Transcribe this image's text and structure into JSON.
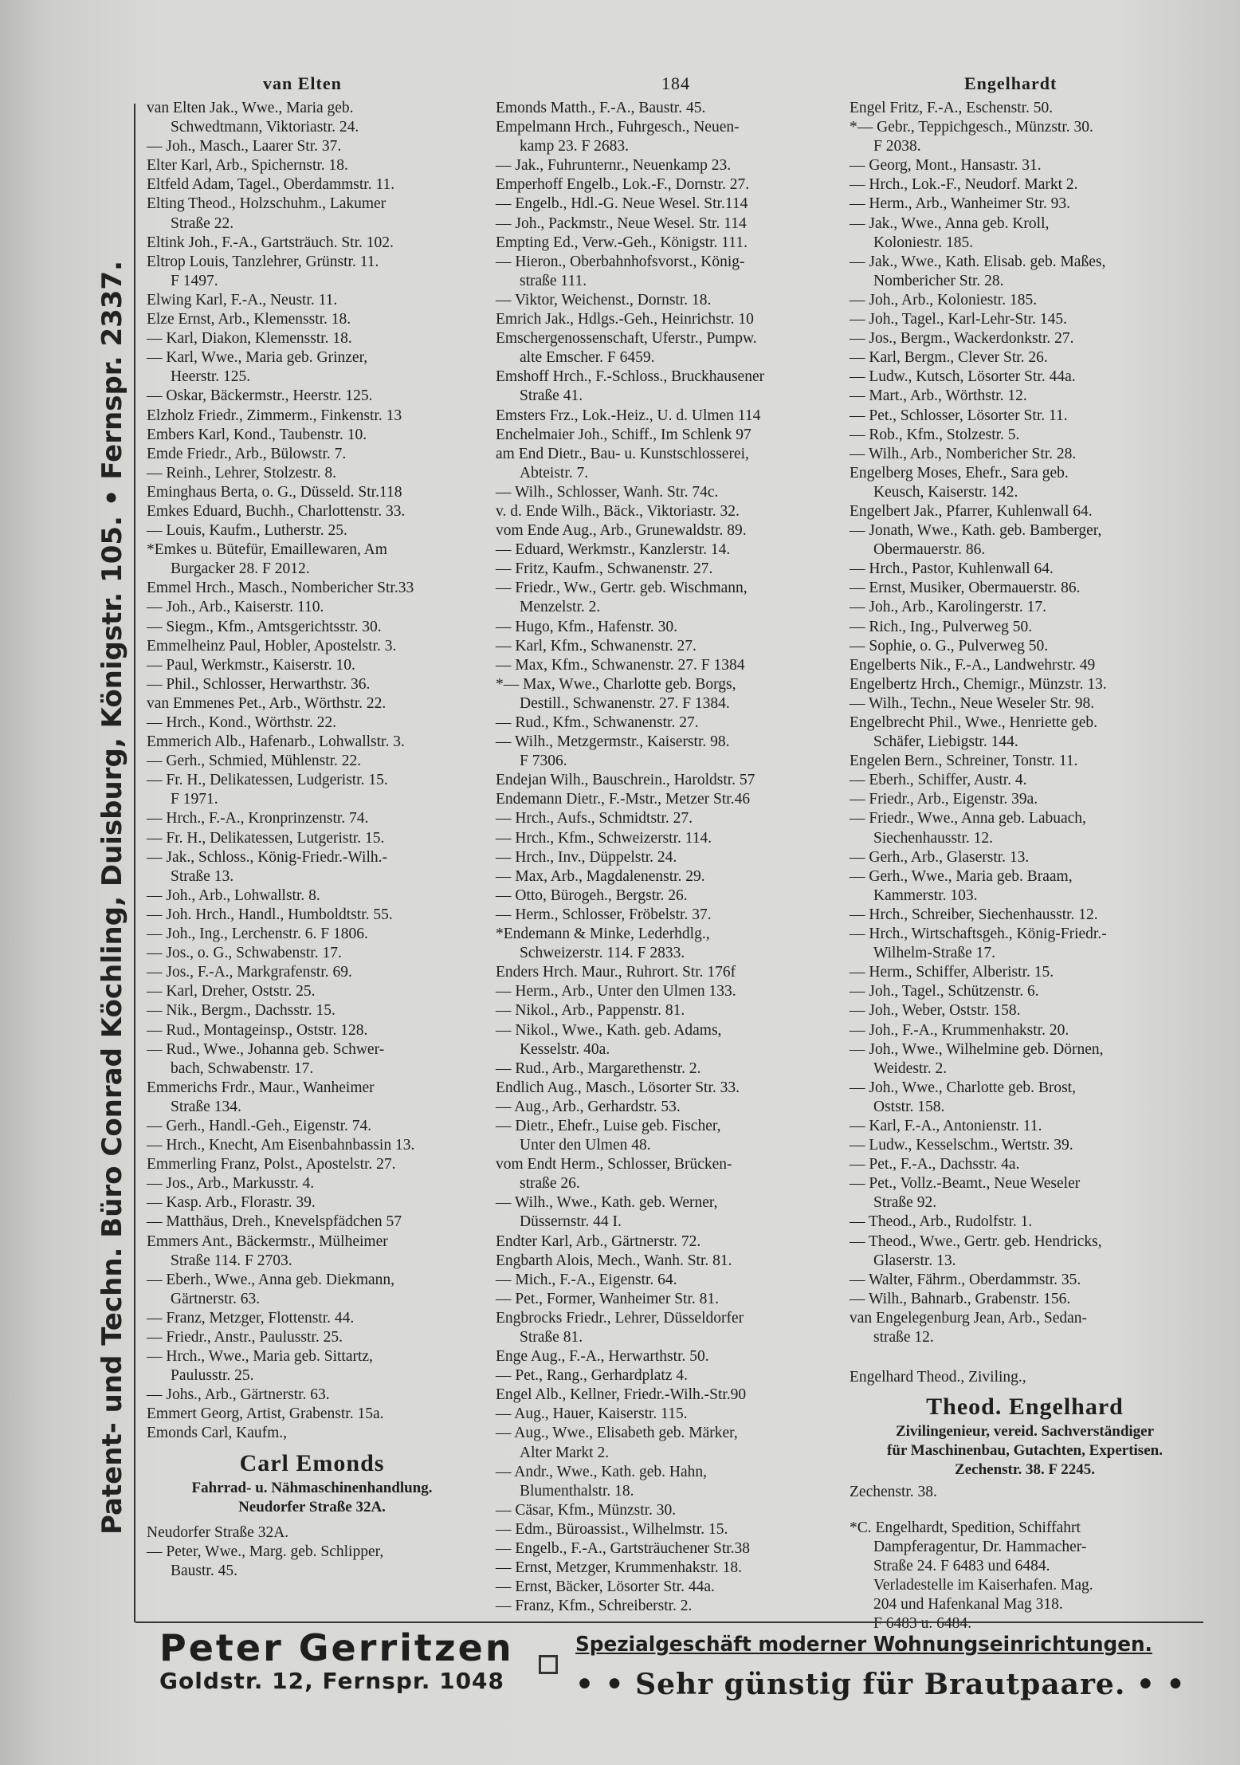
{
  "header": {
    "left": "van Elten",
    "page": "184",
    "right": "Engelhardt"
  },
  "side_ad": "Patent- und Techn. Büro Conrad Köchling, Duisburg, Königstr. 105. • Fernspr. 2337.",
  "columns": [
    {
      "entries": [
        [
          "van Elten Jak., Wwe., Maria geb.",
          "Schwedtmann, Viktoriastr. 24."
        ],
        [
          "— Joh., Masch., Laarer Str. 37."
        ],
        [
          "Elter Karl, Arb., Spichernstr. 18."
        ],
        [
          "Eltfeld Adam, Tagel., Oberdammstr. 11."
        ],
        [
          "Elting Theod., Holzschuhm., Lakumer",
          "Straße 22."
        ],
        [
          "Eltink Joh., F.-A., Gartsträuch. Str. 102."
        ],
        [
          "Eltrop Louis, Tanzlehrer, Grünstr. 11.",
          "F 1497."
        ],
        [
          "Elwing Karl, F.-A., Neustr. 11."
        ],
        [
          "Elze Ernst, Arb., Klemensstr. 18."
        ],
        [
          "— Karl, Diakon, Klemensstr. 18."
        ],
        [
          "— Karl, Wwe., Maria geb. Grinzer,",
          "Heerstr. 125."
        ],
        [
          "— Oskar, Bäckermstr., Heerstr. 125."
        ],
        [
          "Elzholz Friedr., Zimmerm., Finkenstr. 13"
        ],
        [
          "Embers Karl, Kond., Taubenstr. 10."
        ],
        [
          "Emde Friedr., Arb., Bülowstr. 7."
        ],
        [
          "— Reinh., Lehrer, Stolzestr. 8."
        ],
        [
          "Eminghaus Berta, o. G., Düsseld. Str.118"
        ],
        [
          "Emkes Eduard, Buchh., Charlottenstr. 33."
        ],
        [
          "— Louis, Kaufm., Lutherstr. 25."
        ],
        [
          "*Emkes u. Bütefür, Emaillewaren, Am",
          "Burgacker 28. F 2012."
        ],
        [
          "Emmel Hrch., Masch., Nombericher Str.33"
        ],
        [
          "— Joh., Arb., Kaiserstr. 110."
        ],
        [
          "— Siegm., Kfm., Amtsgerichtsstr. 30."
        ],
        [
          "Emmelheinz Paul, Hobler, Apostelstr. 3."
        ],
        [
          "— Paul, Werkmstr., Kaiserstr. 10."
        ],
        [
          "— Phil., Schlosser, Herwarthstr. 36."
        ],
        [
          "van Emmenes Pet., Arb., Wörthstr. 22."
        ],
        [
          "— Hrch., Kond., Wörthstr. 22."
        ],
        [
          "Emmerich Alb., Hafenarb., Lohwallstr. 3."
        ],
        [
          "— Gerh., Schmied, Mühlenstr. 22."
        ],
        [
          "— Fr. H., Delikatessen, Ludgeristr. 15.",
          "F 1971."
        ],
        [
          "— Hrch., F.-A., Kronprinzenstr. 74."
        ],
        [
          "— Fr. H., Delikatessen, Lutgeristr. 15."
        ],
        [
          "— Jak., Schloss., König-Friedr.-Wilh.-",
          "Straße 13."
        ],
        [
          "— Joh., Arb., Lohwallstr. 8."
        ],
        [
          "— Joh. Hrch., Handl., Humboldtstr. 55."
        ],
        [
          "— Joh., Ing., Lerchenstr. 6. F 1806."
        ],
        [
          "— Jos., o. G., Schwabenstr. 17."
        ],
        [
          "— Jos., F.-A., Markgrafenstr. 69."
        ],
        [
          "— Karl, Dreher, Oststr. 25."
        ],
        [
          "— Nik., Bergm., Dachsstr. 15."
        ],
        [
          "— Rud., Montageinsp., Oststr. 128."
        ],
        [
          "— Rud., Wwe., Johanna geb. Schwer-",
          "bach, Schwabenstr. 17."
        ],
        [
          "Emmerichs Frdr., Maur., Wanheimer",
          "Straße 134."
        ],
        [
          "— Gerh., Handl.-Geh., Eigenstr. 74."
        ],
        [
          "— Hrch., Knecht, Am Eisenbahnbassin 13."
        ],
        [
          "Emmerling Franz, Polst., Apostelstr. 27."
        ],
        [
          "— Jos., Arb., Markusstr. 4."
        ],
        [
          "— Kasp. Arb., Florastr. 39."
        ],
        [
          "— Matthäus, Dreh., Knevelspfädchen 57"
        ],
        [
          "Emmers Ant., Bäckermstr., Mülheimer",
          "Straße 114. F 2703."
        ],
        [
          "— Eberh., Wwe., Anna geb. Diekmann,",
          "Gärtnerstr. 63."
        ],
        [
          "— Franz, Metzger, Flottenstr. 44."
        ],
        [
          "— Friedr., Anstr., Paulusstr. 25."
        ],
        [
          "— Hrch., Wwe., Maria geb. Sittartz,",
          "Paulusstr. 25."
        ],
        [
          "— Johs., Arb., Gärtnerstr. 63."
        ],
        [
          "Emmert Georg, Artist, Grabenstr. 15a."
        ]
      ],
      "ad": {
        "intro": "Emonds Carl, Kaufm.,",
        "name": "Carl Emonds",
        "lines": [
          "Fahrrad- u. Nähmaschinenhandlung.",
          "Neudorfer Straße 32A."
        ],
        "outro": "Neudorfer Straße 32A."
      },
      "entries_after": [
        [
          "— Peter, Wwe., Marg. geb. Schlipper,",
          "Baustr. 45."
        ]
      ]
    },
    {
      "entries": [
        [
          "Emonds Matth., F.-A., Baustr. 45."
        ],
        [
          "Empelmann Hrch., Fuhrgesch., Neuen-",
          "kamp 23. F 2683."
        ],
        [
          "— Jak., Fuhrunternr., Neuenkamp 23."
        ],
        [
          "Emperhoff Engelb., Lok.-F., Dornstr. 27."
        ],
        [
          "— Engelb., Hdl.-G. Neue Wesel. Str.114"
        ],
        [
          "— Joh., Packmstr., Neue Wesel. Str. 114"
        ],
        [
          "Empting Ed., Verw.-Geh., Königstr. 111."
        ],
        [
          "— Hieron., Oberbahnhofsvorst., König-",
          "straße 111."
        ],
        [
          "— Viktor, Weichenst., Dornstr. 18."
        ],
        [
          "Emrich Jak., Hdlgs.-Geh., Heinrichstr. 10"
        ],
        [
          "Emschergenossenschaft, Uferstr., Pumpw.",
          "alte Emscher. F 6459."
        ],
        [
          "Emshoff Hrch., F.-Schloss., Bruckhausener",
          "Straße 41."
        ],
        [
          "Emsters Frz., Lok.-Heiz., U. d. Ulmen 114"
        ],
        [
          "Enchelmaier Joh., Schiff., Im Schlenk 97"
        ],
        [
          "am End Dietr., Bau- u. Kunstschlosserei,",
          "Abteistr. 7."
        ],
        [
          "— Wilh., Schlosser, Wanh. Str. 74c."
        ],
        [
          "v. d. Ende Wilh., Bäck., Viktoriastr. 32."
        ],
        [
          "vom Ende Aug., Arb., Grunewaldstr. 89."
        ],
        [
          "— Eduard, Werkmstr., Kanzlerstr. 14."
        ],
        [
          "— Fritz, Kaufm., Schwanenstr. 27."
        ],
        [
          "— Friedr., Ww., Gertr. geb. Wischmann,",
          "Menzelstr. 2."
        ],
        [
          "— Hugo, Kfm., Hafenstr. 30."
        ],
        [
          "— Karl, Kfm., Schwanenstr. 27."
        ],
        [
          "— Max, Kfm., Schwanenstr. 27. F 1384"
        ],
        [
          "*— Max, Wwe., Charlotte geb. Borgs,",
          "Destill., Schwanenstr. 27. F 1384."
        ],
        [
          "— Rud., Kfm., Schwanenstr. 27."
        ],
        [
          "— Wilh., Metzgermstr., Kaiserstr. 98.",
          "F 7306."
        ],
        [
          "Endejan Wilh., Bauschrein., Haroldstr. 57"
        ],
        [
          "Endemann Dietr., F.-Mstr., Metzer Str.46"
        ],
        [
          "— Hrch., Aufs., Schmidtstr. 27."
        ],
        [
          "— Hrch., Kfm., Schweizerstr. 114."
        ],
        [
          "— Hrch., Inv., Düppelstr. 24."
        ],
        [
          "— Max, Arb., Magdalenenstr. 29."
        ],
        [
          "— Otto, Bürogeh., Bergstr. 26."
        ],
        [
          "— Herm., Schlosser, Fröbelstr. 37."
        ],
        [
          "*Endemann & Minke, Lederhdlg.,",
          "Schweizerstr. 114. F 2833."
        ],
        [
          "Enders Hrch. Maur., Ruhrort. Str. 176f"
        ],
        [
          "— Herm., Arb., Unter den Ulmen 133."
        ],
        [
          "— Nikol., Arb., Pappenstr. 81."
        ],
        [
          "— Nikol., Wwe., Kath. geb. Adams,",
          "Kesselstr. 40a."
        ],
        [
          "— Rud., Arb., Margarethenstr. 2."
        ],
        [
          "Endlich Aug., Masch., Lösorter Str. 33."
        ],
        [
          "— Aug., Arb., Gerhardstr. 53."
        ],
        [
          "— Dietr., Ehefr., Luise geb. Fischer,",
          "Unter den Ulmen 48."
        ],
        [
          "vom Endt Herm., Schlosser, Brücken-",
          "straße 26."
        ],
        [
          "— Wilh., Wwe., Kath. geb. Werner,",
          "Düssernstr. 44 I."
        ],
        [
          "Endter Karl, Arb., Gärtnerstr. 72."
        ],
        [
          "Engbarth Alois, Mech., Wanh. Str. 81."
        ],
        [
          "— Mich., F.-A., Eigenstr. 64."
        ],
        [
          "— Pet., Former, Wanheimer Str. 81."
        ],
        [
          "Engbrocks Friedr., Lehrer, Düsseldorfer",
          "Straße 81."
        ],
        [
          "Enge Aug., F.-A., Herwarthstr. 50."
        ],
        [
          "— Pet., Rang., Gerhardplatz 4."
        ],
        [
          "Engel Alb., Kellner, Friedr.-Wilh.-Str.90"
        ],
        [
          "— Aug., Hauer, Kaiserstr. 115."
        ],
        [
          "— Aug., Wwe., Elisabeth geb. Märker,",
          "Alter Markt 2."
        ],
        [
          "— Andr., Wwe., Kath. geb. Hahn,",
          "Blumenthalstr. 18."
        ],
        [
          "— Cäsar, Kfm., Münzstr. 30."
        ],
        [
          "— Edm., Büroassist., Wilhelmstr. 15."
        ],
        [
          "— Engelb., F.-A., Gartsträuchener Str.38"
        ],
        [
          "— Ernst, Metzger, Krummenhakstr. 18."
        ],
        [
          "— Ernst, Bäcker, Lösorter Str. 44a."
        ],
        [
          "— Franz, Kfm., Schreiberstr. 2."
        ]
      ]
    },
    {
      "entries": [
        [
          "Engel Fritz, F.-A., Eschenstr. 50."
        ],
        [
          "*— Gebr., Teppichgesch., Münzstr. 30.",
          "F 2038."
        ],
        [
          "— Georg, Mont., Hansastr. 31."
        ],
        [
          "— Hrch., Lok.-F., Neudorf. Markt 2."
        ],
        [
          "— Herm., Arb., Wanheimer Str. 93."
        ],
        [
          "— Jak., Wwe., Anna geb. Kroll,",
          "Koloniestr. 185."
        ],
        [
          "— Jak., Wwe., Kath. Elisab. geb. Maßes,",
          "Nombericher Str. 28."
        ],
        [
          "— Joh., Arb., Koloniestr. 185."
        ],
        [
          "— Joh., Tagel., Karl-Lehr-Str. 145."
        ],
        [
          "— Jos., Bergm., Wackerdonkstr. 27."
        ],
        [
          "— Karl, Bergm., Clever Str. 26."
        ],
        [
          "— Ludw., Kutsch, Lösorter Str. 44a."
        ],
        [
          "— Mart., Arb., Wörthstr. 12."
        ],
        [
          "— Pet., Schlosser, Lösorter Str. 11."
        ],
        [
          "— Rob., Kfm., Stolzestr. 5."
        ],
        [
          "— Wilh., Arb., Nombericher Str. 28."
        ],
        [
          "Engelberg Moses, Ehefr., Sara geb.",
          "Keusch, Kaiserstr. 142."
        ],
        [
          "Engelbert Jak., Pfarrer, Kuhlenwall 64."
        ],
        [
          "— Jonath, Wwe., Kath. geb. Bamberger,",
          "Obermauerstr. 86."
        ],
        [
          "— Hrch., Pastor, Kuhlenwall 64."
        ],
        [
          "— Ernst, Musiker, Obermauerstr. 86."
        ],
        [
          "— Joh., Arb., Karolingerstr. 17."
        ],
        [
          "— Rich., Ing., Pulverweg 50."
        ],
        [
          "— Sophie, o. G., Pulverweg 50."
        ],
        [
          "Engelberts Nik., F.-A., Landwehrstr. 49"
        ],
        [
          "Engelbertz Hrch., Chemigr., Münzstr. 13."
        ],
        [
          "— Wilh., Techn., Neue Weseler Str. 98."
        ],
        [
          "Engelbrecht Phil., Wwe., Henriette geb.",
          "Schäfer, Liebigstr. 144."
        ],
        [
          "Engelen Bern., Schreiner, Tonstr. 11."
        ],
        [
          "— Eberh., Schiffer, Austr. 4."
        ],
        [
          "— Friedr., Arb., Eigenstr. 39a."
        ],
        [
          "— Friedr., Wwe., Anna geb. Labuach,",
          "Siechenhausstr. 12."
        ],
        [
          "— Gerh., Arb., Glaserstr. 13."
        ],
        [
          "— Gerh., Wwe., Maria geb. Braam,",
          "Kammerstr. 103."
        ],
        [
          "— Hrch., Schreiber, Siechenhausstr. 12."
        ],
        [
          "— Hrch., Wirtschaftsgeh., König-Friedr.-",
          "Wilhelm-Straße 17."
        ],
        [
          "— Herm., Schiffer, Alberistr. 15."
        ],
        [
          "— Joh., Tagel., Schützenstr. 6."
        ],
        [
          "— Joh., Weber, Oststr. 158."
        ],
        [
          "— Joh., F.-A., Krummenhakstr. 20."
        ],
        [
          "— Joh., Wwe., Wilhelmine geb. Dörnen,",
          "Weidestr. 2."
        ],
        [
          "— Joh., Wwe., Charlotte geb. Brost,",
          "Oststr. 158."
        ],
        [
          "— Karl, F.-A., Antonienstr. 11."
        ],
        [
          "— Ludw., Kesselschm., Wertstr. 39."
        ],
        [
          "— Pet., F.-A., Dachsstr. 4a."
        ],
        [
          "— Pet., Vollz.-Beamt., Neue Weseler",
          "Straße 92."
        ],
        [
          "— Theod., Arb., Rudolfstr. 1."
        ],
        [
          "— Theod., Wwe., Gertr. geb. Hendricks,",
          "Glaserstr. 13."
        ],
        [
          "— Walter, Fährm., Oberdammstr. 35."
        ],
        [
          "— Wilh., Bahnarb., Grabenstr. 156."
        ],
        [
          "van Engelegenburg Jean, Arb., Sedan-",
          "straße 12."
        ]
      ],
      "ad": {
        "intro": "Engelhard Theod., Ziviling.,",
        "name": "Theod. Engelhard",
        "lines": [
          "Zivilingenieur, vereid. Sachverständiger",
          "für Maschinenbau, Gutachten, Expertisen.",
          "Zechenstr. 38. F 2245."
        ],
        "outro": "Zechenstr. 38."
      },
      "entries_after": [
        [
          "*C. Engelhardt, Spedition, Schiffahrt",
          "Dampferagentur, Dr. Hammacher-",
          "Straße 24. F 6483 und 6484.",
          "Verladestelle im Kaiserhafen. Mag.",
          "204 und Hafenkanal Mag 318.",
          "F 6483 u. 6484."
        ]
      ]
    }
  ],
  "footer_ad": {
    "name": "Peter Gerritzen",
    "address": "Goldstr. 12, Fernspr. 1048",
    "slogan": "Spezialgeschäft moderner Wohnungseinrichtungen.",
    "note": "• • Sehr günstig für Brautpaare. • •"
  }
}
